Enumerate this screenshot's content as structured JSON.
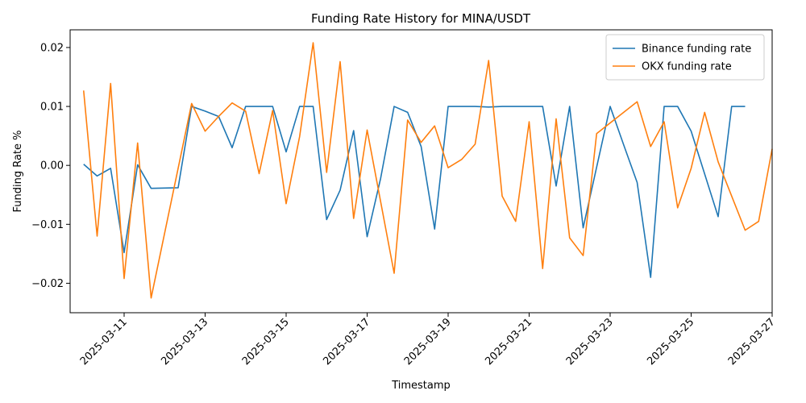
{
  "chart_data": {
    "type": "line",
    "title": "Funding Rate History for MINA/USDT",
    "xlabel": "Timestamp",
    "ylabel": "Funding Rate %",
    "xlim": [
      "2025-03-09 16:00",
      "2025-03-27 00:00"
    ],
    "ylim": [
      -0.025,
      0.023
    ],
    "x_ticks": [
      "2025-03-11",
      "2025-03-13",
      "2025-03-15",
      "2025-03-17",
      "2025-03-19",
      "2025-03-21",
      "2025-03-23",
      "2025-03-25",
      "2025-03-27"
    ],
    "y_ticks": [
      {
        "value": 0.02,
        "label": "0.02"
      },
      {
        "value": 0.01,
        "label": "0.01"
      },
      {
        "value": 0.0,
        "label": "0.00"
      },
      {
        "value": -0.01,
        "label": "−0.01"
      },
      {
        "value": -0.02,
        "label": "−0.02"
      }
    ],
    "legend_position": "top-right",
    "grid": false,
    "series": [
      {
        "name": "Binance funding rate",
        "color": "#1f77b4",
        "points": [
          [
            "2025-03-10 00:00",
            0.0002
          ],
          [
            "2025-03-10 08:00",
            -0.0018
          ],
          [
            "2025-03-10 16:00",
            -0.0005
          ],
          [
            "2025-03-11 00:00",
            -0.0148
          ],
          [
            "2025-03-11 08:00",
            0.0001
          ],
          [
            "2025-03-11 16:00",
            -0.0039
          ],
          [
            "2025-03-12 08:00",
            -0.0038
          ],
          [
            "2025-03-12 16:00",
            0.01
          ],
          [
            "2025-03-13 00:00",
            0.0092
          ],
          [
            "2025-03-13 08:00",
            0.0083
          ],
          [
            "2025-03-13 16:00",
            0.003
          ],
          [
            "2025-03-14 00:00",
            0.01
          ],
          [
            "2025-03-14 08:00",
            0.01
          ],
          [
            "2025-03-14 16:00",
            0.01
          ],
          [
            "2025-03-15 00:00",
            0.0023
          ],
          [
            "2025-03-15 08:00",
            0.01
          ],
          [
            "2025-03-15 16:00",
            0.01
          ],
          [
            "2025-03-16 00:00",
            -0.0092
          ],
          [
            "2025-03-16 08:00",
            -0.0042
          ],
          [
            "2025-03-16 16:00",
            0.0059
          ],
          [
            "2025-03-17 00:00",
            -0.0121
          ],
          [
            "2025-03-17 08:00",
            -0.0022
          ],
          [
            "2025-03-17 16:00",
            0.01
          ],
          [
            "2025-03-18 00:00",
            0.009
          ],
          [
            "2025-03-18 08:00",
            0.0032
          ],
          [
            "2025-03-18 16:00",
            -0.0108
          ],
          [
            "2025-03-19 00:00",
            0.01
          ],
          [
            "2025-03-19 08:00",
            0.01
          ],
          [
            "2025-03-19 16:00",
            0.01
          ],
          [
            "2025-03-20 00:00",
            0.0099
          ],
          [
            "2025-03-20 08:00",
            0.01
          ],
          [
            "2025-03-20 16:00",
            0.01
          ],
          [
            "2025-03-21 00:00",
            0.01
          ],
          [
            "2025-03-21 08:00",
            0.01
          ],
          [
            "2025-03-21 16:00",
            -0.0035
          ],
          [
            "2025-03-22 00:00",
            0.01
          ],
          [
            "2025-03-22 08:00",
            -0.0106
          ],
          [
            "2025-03-23 00:00",
            0.01
          ],
          [
            "2025-03-23 08:00",
            0.0035
          ],
          [
            "2025-03-23 16:00",
            -0.0029
          ],
          [
            "2025-03-24 00:00",
            -0.019
          ],
          [
            "2025-03-24 08:00",
            0.01
          ],
          [
            "2025-03-24 16:00",
            0.01
          ],
          [
            "2025-03-25 00:00",
            0.0058
          ],
          [
            "2025-03-25 16:00",
            -0.0087
          ],
          [
            "2025-03-26 00:00",
            0.01
          ],
          [
            "2025-03-26 08:00",
            0.01
          ]
        ]
      },
      {
        "name": "OKX funding rate",
        "color": "#ff7f0e",
        "points": [
          [
            "2025-03-10 00:00",
            0.0127
          ],
          [
            "2025-03-10 08:00",
            -0.012
          ],
          [
            "2025-03-10 16:00",
            0.0139
          ],
          [
            "2025-03-11 00:00",
            -0.0192
          ],
          [
            "2025-03-11 08:00",
            0.0038
          ],
          [
            "2025-03-11 16:00",
            -0.0225
          ],
          [
            "2025-03-12 16:00",
            0.0105
          ],
          [
            "2025-03-13 00:00",
            0.0058
          ],
          [
            "2025-03-13 08:00",
            0.0083
          ],
          [
            "2025-03-13 16:00",
            0.0106
          ],
          [
            "2025-03-14 00:00",
            0.0092
          ],
          [
            "2025-03-14 08:00",
            -0.0014
          ],
          [
            "2025-03-14 16:00",
            0.0093
          ],
          [
            "2025-03-15 00:00",
            -0.0065
          ],
          [
            "2025-03-15 08:00",
            0.0049
          ],
          [
            "2025-03-15 16:00",
            0.0208
          ],
          [
            "2025-03-16 00:00",
            -0.0012
          ],
          [
            "2025-03-16 08:00",
            0.0176
          ],
          [
            "2025-03-16 16:00",
            -0.009
          ],
          [
            "2025-03-17 00:00",
            0.006
          ],
          [
            "2025-03-17 16:00",
            -0.0183
          ],
          [
            "2025-03-18 00:00",
            0.0077
          ],
          [
            "2025-03-18 08:00",
            0.0039
          ],
          [
            "2025-03-18 16:00",
            0.0067
          ],
          [
            "2025-03-19 00:00",
            -0.0004
          ],
          [
            "2025-03-19 08:00",
            0.001
          ],
          [
            "2025-03-19 16:00",
            0.0036
          ],
          [
            "2025-03-20 00:00",
            0.0178
          ],
          [
            "2025-03-20 08:00",
            -0.0052
          ],
          [
            "2025-03-20 16:00",
            -0.0095
          ],
          [
            "2025-03-21 00:00",
            0.0074
          ],
          [
            "2025-03-21 08:00",
            -0.0175
          ],
          [
            "2025-03-21 16:00",
            0.0079
          ],
          [
            "2025-03-22 00:00",
            -0.0123
          ],
          [
            "2025-03-22 08:00",
            -0.0153
          ],
          [
            "2025-03-22 16:00",
            0.0054
          ],
          [
            "2025-03-23 16:00",
            0.0108
          ],
          [
            "2025-03-24 00:00",
            0.0032
          ],
          [
            "2025-03-24 08:00",
            0.0074
          ],
          [
            "2025-03-24 16:00",
            -0.0072
          ],
          [
            "2025-03-25 00:00",
            -0.0005
          ],
          [
            "2025-03-25 08:00",
            0.009
          ],
          [
            "2025-03-25 16:00",
            0.0006
          ],
          [
            "2025-03-26 08:00",
            -0.011
          ],
          [
            "2025-03-26 16:00",
            -0.0095
          ],
          [
            "2025-03-27 00:00",
            0.0028
          ]
        ]
      }
    ]
  }
}
